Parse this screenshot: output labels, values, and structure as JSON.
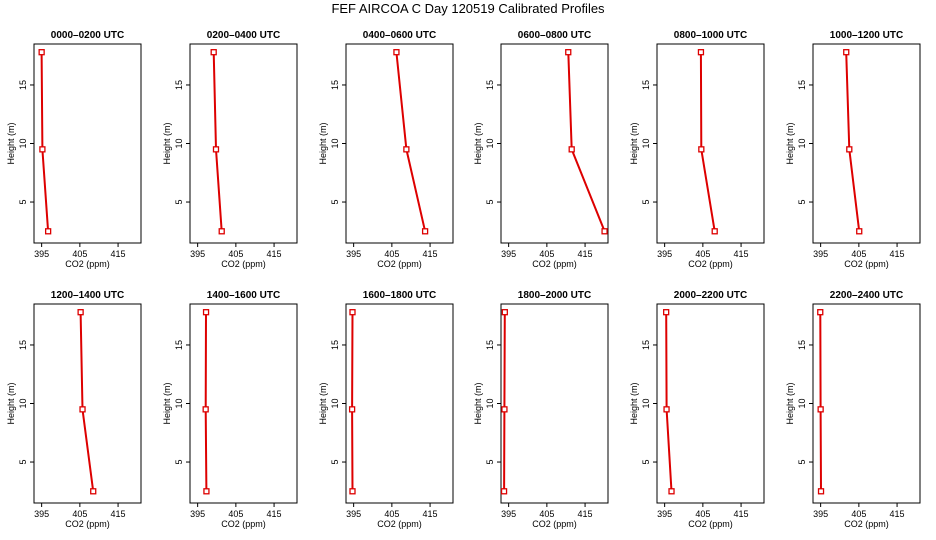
{
  "figure": {
    "title": "FEF AIRCOA C  Day 120519  Calibrated Profiles"
  },
  "chart_data": [
    {
      "type": "line",
      "title": "0000–0200 UTC",
      "xlabel": "CO2 (ppm)",
      "ylabel": "Height (m)",
      "xlim": [
        393,
        421
      ],
      "ylim": [
        1.5,
        18.5
      ],
      "xticks": [
        395,
        405,
        415
      ],
      "yticks": [
        5,
        10,
        15
      ],
      "heights": [
        2.5,
        9.5,
        17.8
      ],
      "values": [
        396.7,
        395.2,
        395.0
      ],
      "color": "#dd0000"
    },
    {
      "type": "line",
      "title": "0200–0400 UTC",
      "xlabel": "CO2 (ppm)",
      "ylabel": "Height (m)",
      "xlim": [
        393,
        421
      ],
      "ylim": [
        1.5,
        18.5
      ],
      "xticks": [
        395,
        405,
        415
      ],
      "yticks": [
        5,
        10,
        15
      ],
      "heights": [
        2.5,
        9.5,
        17.8
      ],
      "values": [
        401.3,
        399.8,
        399.2
      ],
      "color": "#dd0000"
    },
    {
      "type": "line",
      "title": "0400–0600 UTC",
      "xlabel": "CO2 (ppm)",
      "ylabel": "Height (m)",
      "xlim": [
        393,
        421
      ],
      "ylim": [
        1.5,
        18.5
      ],
      "xticks": [
        395,
        405,
        415
      ],
      "yticks": [
        5,
        10,
        15
      ],
      "heights": [
        2.5,
        9.5,
        17.8
      ],
      "values": [
        413.7,
        408.8,
        406.2
      ],
      "color": "#dd0000"
    },
    {
      "type": "line",
      "title": "0600–0800 UTC",
      "xlabel": "CO2 (ppm)",
      "ylabel": "Height (m)",
      "xlim": [
        393,
        421
      ],
      "ylim": [
        1.5,
        18.5
      ],
      "xticks": [
        395,
        405,
        415
      ],
      "yticks": [
        5,
        10,
        15
      ],
      "heights": [
        2.5,
        9.5,
        17.8
      ],
      "values": [
        420.1,
        411.5,
        410.6
      ],
      "color": "#dd0000"
    },
    {
      "type": "line",
      "title": "0800–1000 UTC",
      "xlabel": "CO2 (ppm)",
      "ylabel": "Height (m)",
      "xlim": [
        393,
        421
      ],
      "ylim": [
        1.5,
        18.5
      ],
      "xticks": [
        395,
        405,
        415
      ],
      "yticks": [
        5,
        10,
        15
      ],
      "heights": [
        2.5,
        9.5,
        17.8
      ],
      "values": [
        408.1,
        404.6,
        404.5
      ],
      "color": "#dd0000"
    },
    {
      "type": "line",
      "title": "1000–1200 UTC",
      "xlabel": "CO2 (ppm)",
      "ylabel": "Height (m)",
      "xlim": [
        393,
        421
      ],
      "ylim": [
        1.5,
        18.5
      ],
      "xticks": [
        395,
        405,
        415
      ],
      "yticks": [
        5,
        10,
        15
      ],
      "heights": [
        2.5,
        9.5,
        17.8
      ],
      "values": [
        405.1,
        402.5,
        401.7
      ],
      "color": "#dd0000"
    },
    {
      "type": "line",
      "title": "1200–1400 UTC",
      "xlabel": "CO2 (ppm)",
      "ylabel": "Height (m)",
      "xlim": [
        393,
        421
      ],
      "ylim": [
        1.5,
        18.5
      ],
      "xticks": [
        395,
        405,
        415
      ],
      "yticks": [
        5,
        10,
        15
      ],
      "heights": [
        2.5,
        9.5,
        17.8
      ],
      "values": [
        408.5,
        405.7,
        405.2
      ],
      "color": "#dd0000"
    },
    {
      "type": "line",
      "title": "1400–1600 UTC",
      "xlabel": "CO2 (ppm)",
      "ylabel": "Height (m)",
      "xlim": [
        393,
        421
      ],
      "ylim": [
        1.5,
        18.5
      ],
      "xticks": [
        395,
        405,
        415
      ],
      "yticks": [
        5,
        10,
        15
      ],
      "heights": [
        2.5,
        9.5,
        17.8
      ],
      "values": [
        397.3,
        397.1,
        397.2
      ],
      "color": "#dd0000"
    },
    {
      "type": "line",
      "title": "1600–1800 UTC",
      "xlabel": "CO2 (ppm)",
      "ylabel": "Height (m)",
      "xlim": [
        393,
        421
      ],
      "ylim": [
        1.5,
        18.5
      ],
      "xticks": [
        395,
        405,
        415
      ],
      "yticks": [
        5,
        10,
        15
      ],
      "heights": [
        2.5,
        9.5,
        17.8
      ],
      "values": [
        394.7,
        394.6,
        394.7
      ],
      "color": "#dd0000"
    },
    {
      "type": "line",
      "title": "1800–2000 UTC",
      "xlabel": "CO2 (ppm)",
      "ylabel": "Height (m)",
      "xlim": [
        393,
        421
      ],
      "ylim": [
        1.5,
        18.5
      ],
      "xticks": [
        395,
        405,
        415
      ],
      "yticks": [
        5,
        10,
        15
      ],
      "heights": [
        2.5,
        9.5,
        17.8
      ],
      "values": [
        393.8,
        393.9,
        394.0
      ],
      "color": "#dd0000"
    },
    {
      "type": "line",
      "title": "2000–2200 UTC",
      "xlabel": "CO2 (ppm)",
      "ylabel": "Height (m)",
      "xlim": [
        393,
        421
      ],
      "ylim": [
        1.5,
        18.5
      ],
      "xticks": [
        395,
        405,
        415
      ],
      "yticks": [
        5,
        10,
        15
      ],
      "heights": [
        2.5,
        9.5,
        17.8
      ],
      "values": [
        396.8,
        395.5,
        395.4
      ],
      "color": "#dd0000"
    },
    {
      "type": "line",
      "title": "2200–2400 UTC",
      "xlabel": "CO2 (ppm)",
      "ylabel": "Height (m)",
      "xlim": [
        393,
        421
      ],
      "ylim": [
        1.5,
        18.5
      ],
      "xticks": [
        395,
        405,
        415
      ],
      "yticks": [
        5,
        10,
        15
      ],
      "heights": [
        2.5,
        9.5,
        17.8
      ],
      "values": [
        395.1,
        395.0,
        394.9
      ],
      "color": "#dd0000"
    }
  ]
}
